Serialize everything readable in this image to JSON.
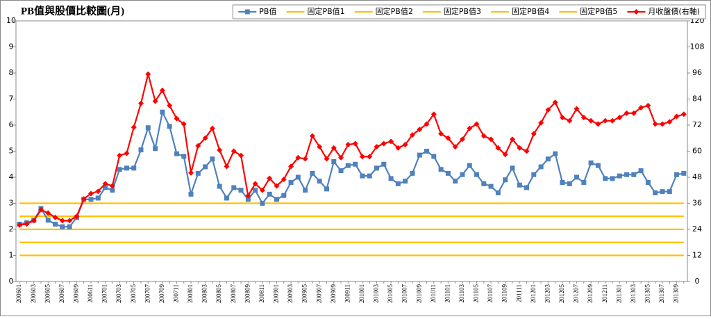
{
  "chart_data": {
    "type": "line",
    "title": "PB值與股價比較圖(月)",
    "categories": [
      "200601",
      null,
      "200603",
      null,
      "200605",
      null,
      "200607",
      null,
      "200609",
      null,
      "200611",
      null,
      "200701",
      null,
      "200703",
      null,
      "200705",
      null,
      "200707",
      null,
      "200709",
      null,
      "200711",
      null,
      "200801",
      null,
      "200803",
      null,
      "200805",
      null,
      "200807",
      null,
      "200809",
      null,
      "200811",
      null,
      "200901",
      null,
      "200903",
      null,
      "200905",
      null,
      "200907",
      null,
      "200909",
      null,
      "200911",
      null,
      "201001",
      null,
      "201003",
      null,
      "201005",
      null,
      "201007",
      null,
      "201009",
      null,
      "201011",
      null,
      "201101",
      null,
      "201103",
      null,
      "201105",
      null,
      "201107",
      null,
      "201109",
      null,
      "201111",
      null,
      "201201",
      null,
      "201203",
      null,
      "201205",
      null,
      "201207",
      null,
      "201209",
      null,
      "201211",
      null,
      "201301",
      null,
      "201303",
      null,
      "201305",
      null,
      "201307",
      null,
      "201309",
      null
    ],
    "series": [
      {
        "name": "PB值",
        "color": "#4f81bd",
        "marker": "square",
        "values": [
          2.2,
          2.25,
          2.35,
          2.8,
          2.35,
          2.2,
          2.1,
          2.1,
          2.45,
          3.15,
          3.15,
          3.2,
          3.6,
          3.5,
          4.3,
          4.35,
          4.35,
          5.05,
          5.9,
          5.1,
          6.5,
          5.95,
          4.9,
          4.8,
          3.35,
          4.15,
          4.4,
          4.7,
          3.65,
          3.2,
          3.6,
          3.5,
          3.15,
          3.5,
          3.0,
          3.35,
          3.15,
          3.3,
          3.8,
          4.0,
          3.5,
          4.15,
          3.85,
          3.55,
          4.6,
          4.25,
          4.45,
          4.5,
          4.05,
          4.05,
          4.35,
          4.5,
          3.95,
          3.75,
          3.85,
          4.15,
          4.85,
          5.0,
          4.8,
          4.3,
          4.15,
          3.85,
          4.1,
          4.45,
          4.1,
          3.75,
          3.65,
          3.4,
          3.9,
          4.35,
          3.7,
          3.6,
          4.1,
          4.4,
          4.7,
          4.9,
          3.8,
          3.75,
          4.0,
          3.8,
          4.55,
          4.45,
          3.95,
          3.95,
          4.05,
          4.1,
          4.1,
          4.25,
          3.8,
          3.4,
          3.45,
          3.45,
          4.1,
          4.15
        ]
      },
      {
        "name": "固定PB值1",
        "color": "#ffc000",
        "marker": "none",
        "values": [
          1,
          1,
          1,
          1,
          1,
          1,
          1,
          1,
          1,
          1,
          1,
          1,
          1,
          1,
          1,
          1,
          1,
          1,
          1,
          1,
          1,
          1,
          1,
          1,
          1,
          1,
          1,
          1,
          1,
          1,
          1,
          1,
          1,
          1,
          1,
          1,
          1,
          1,
          1,
          1,
          1,
          1,
          1,
          1,
          1,
          1,
          1,
          1,
          1,
          1,
          1,
          1,
          1,
          1,
          1,
          1,
          1,
          1,
          1,
          1,
          1,
          1,
          1,
          1,
          1,
          1,
          1,
          1,
          1,
          1,
          1,
          1,
          1,
          1,
          1,
          1,
          1,
          1,
          1,
          1,
          1,
          1,
          1,
          1,
          1,
          1,
          1,
          1,
          1,
          1,
          1,
          1,
          1,
          1
        ]
      },
      {
        "name": "固定PB值2",
        "color": "#ffc000",
        "marker": "none",
        "values": [
          1.5,
          1.5,
          1.5,
          1.5,
          1.5,
          1.5,
          1.5,
          1.5,
          1.5,
          1.5,
          1.5,
          1.5,
          1.5,
          1.5,
          1.5,
          1.5,
          1.5,
          1.5,
          1.5,
          1.5,
          1.5,
          1.5,
          1.5,
          1.5,
          1.5,
          1.5,
          1.5,
          1.5,
          1.5,
          1.5,
          1.5,
          1.5,
          1.5,
          1.5,
          1.5,
          1.5,
          1.5,
          1.5,
          1.5,
          1.5,
          1.5,
          1.5,
          1.5,
          1.5,
          1.5,
          1.5,
          1.5,
          1.5,
          1.5,
          1.5,
          1.5,
          1.5,
          1.5,
          1.5,
          1.5,
          1.5,
          1.5,
          1.5,
          1.5,
          1.5,
          1.5,
          1.5,
          1.5,
          1.5,
          1.5,
          1.5,
          1.5,
          1.5,
          1.5,
          1.5,
          1.5,
          1.5,
          1.5,
          1.5,
          1.5,
          1.5,
          1.5,
          1.5,
          1.5,
          1.5,
          1.5,
          1.5,
          1.5,
          1.5,
          1.5,
          1.5,
          1.5,
          1.5,
          1.5,
          1.5,
          1.5,
          1.5,
          1.5,
          1.5
        ]
      },
      {
        "name": "固定PB值3",
        "color": "#ffc000",
        "marker": "none",
        "values": [
          2,
          2,
          2,
          2,
          2,
          2,
          2,
          2,
          2,
          2,
          2,
          2,
          2,
          2,
          2,
          2,
          2,
          2,
          2,
          2,
          2,
          2,
          2,
          2,
          2,
          2,
          2,
          2,
          2,
          2,
          2,
          2,
          2,
          2,
          2,
          2,
          2,
          2,
          2,
          2,
          2,
          2,
          2,
          2,
          2,
          2,
          2,
          2,
          2,
          2,
          2,
          2,
          2,
          2,
          2,
          2,
          2,
          2,
          2,
          2,
          2,
          2,
          2,
          2,
          2,
          2,
          2,
          2,
          2,
          2,
          2,
          2,
          2,
          2,
          2,
          2,
          2,
          2,
          2,
          2,
          2,
          2,
          2,
          2,
          2,
          2,
          2,
          2,
          2,
          2,
          2,
          2,
          2,
          2
        ]
      },
      {
        "name": "固定PB值4",
        "color": "#ffc000",
        "marker": "none",
        "values": [
          2.5,
          2.5,
          2.5,
          2.5,
          2.5,
          2.5,
          2.5,
          2.5,
          2.5,
          2.5,
          2.5,
          2.5,
          2.5,
          2.5,
          2.5,
          2.5,
          2.5,
          2.5,
          2.5,
          2.5,
          2.5,
          2.5,
          2.5,
          2.5,
          2.5,
          2.5,
          2.5,
          2.5,
          2.5,
          2.5,
          2.5,
          2.5,
          2.5,
          2.5,
          2.5,
          2.5,
          2.5,
          2.5,
          2.5,
          2.5,
          2.5,
          2.5,
          2.5,
          2.5,
          2.5,
          2.5,
          2.5,
          2.5,
          2.5,
          2.5,
          2.5,
          2.5,
          2.5,
          2.5,
          2.5,
          2.5,
          2.5,
          2.5,
          2.5,
          2.5,
          2.5,
          2.5,
          2.5,
          2.5,
          2.5,
          2.5,
          2.5,
          2.5,
          2.5,
          2.5,
          2.5,
          2.5,
          2.5,
          2.5,
          2.5,
          2.5,
          2.5,
          2.5,
          2.5,
          2.5,
          2.5,
          2.5,
          2.5,
          2.5,
          2.5,
          2.5,
          2.5,
          2.5,
          2.5,
          2.5,
          2.5,
          2.5,
          2.5,
          2.5
        ]
      },
      {
        "name": "固定PB值5",
        "color": "#ffc000",
        "marker": "none",
        "values": [
          3,
          3,
          3,
          3,
          3,
          3,
          3,
          3,
          3,
          3,
          3,
          3,
          3,
          3,
          3,
          3,
          3,
          3,
          3,
          3,
          3,
          3,
          3,
          3,
          3,
          3,
          3,
          3,
          3,
          3,
          3,
          3,
          3,
          3,
          3,
          3,
          3,
          3,
          3,
          3,
          3,
          3,
          3,
          3,
          3,
          3,
          3,
          3,
          3,
          3,
          3,
          3,
          3,
          3,
          3,
          3,
          3,
          3,
          3,
          3,
          3,
          3,
          3,
          3,
          3,
          3,
          3,
          3,
          3,
          3,
          3,
          3,
          3,
          3,
          3,
          3,
          3,
          3,
          3,
          3,
          3,
          3,
          3,
          3,
          3,
          3,
          3,
          3,
          3,
          3,
          3,
          3,
          3,
          3
        ]
      },
      {
        "name": "月收盤價(右軸)",
        "color": "#ff0000",
        "marker": "diamond",
        "axis": "y2",
        "values": [
          26,
          26.5,
          28,
          33,
          31.5,
          29.5,
          28,
          28,
          30,
          38,
          40.5,
          41.5,
          45,
          44,
          58,
          59,
          71,
          82,
          95.5,
          83,
          88,
          81,
          75,
          72.5,
          50,
          62.5,
          66,
          70.5,
          60.5,
          53,
          60,
          58,
          39.5,
          45,
          42,
          47.5,
          44,
          47,
          53,
          57,
          56.5,
          67,
          62,
          56.5,
          61.5,
          57,
          63,
          63.5,
          57.5,
          57.5,
          62,
          63.5,
          64.5,
          61.5,
          63,
          67.5,
          70,
          72.5,
          77,
          68,
          66,
          62,
          65.5,
          70.5,
          72.5,
          67,
          65.5,
          61.5,
          58.5,
          65.5,
          61.5,
          60,
          68,
          73,
          79,
          82.5,
          75.5,
          74,
          79.5,
          75.5,
          74,
          72.5,
          74,
          74,
          75.5,
          77.5,
          77.5,
          80,
          81,
          72.5,
          72.5,
          73.5,
          76,
          77
        ]
      }
    ],
    "ylim": [
      0,
      10
    ],
    "yticks": [
      0,
      1,
      2,
      3,
      4,
      5,
      6,
      7,
      8,
      9,
      10
    ],
    "y2lim": [
      0,
      120
    ],
    "y2ticks": [
      0,
      12,
      24,
      36,
      48,
      60,
      72,
      84,
      96,
      108,
      120
    ],
    "legend": "top-right"
  }
}
